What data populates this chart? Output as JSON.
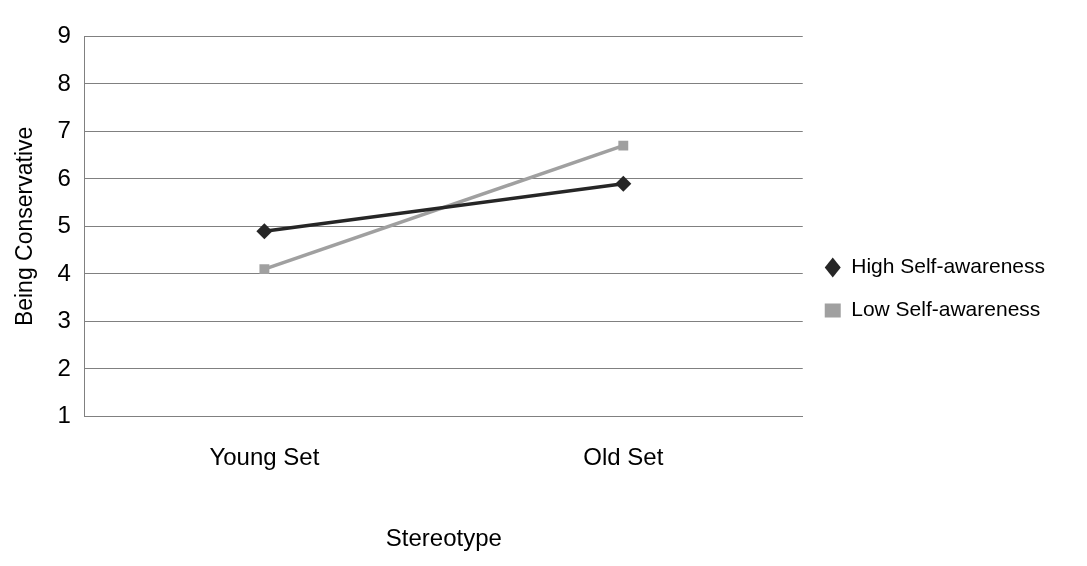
{
  "chart_data": {
    "type": "line",
    "xlabel": "Stereotype",
    "ylabel": "Being Conservative",
    "categories": [
      "Young Set",
      "Old Set"
    ],
    "series": [
      {
        "name": "High Self-awareness",
        "color": "#262626",
        "values": [
          4.9,
          5.9
        ],
        "marker": "diamond"
      },
      {
        "name": "Low Self-awareness",
        "color": "#a0a0a0",
        "values": [
          4.1,
          6.7
        ],
        "marker": "square"
      }
    ],
    "ylim": [
      1,
      9
    ],
    "yticks": [
      1,
      2,
      3,
      4,
      5,
      6,
      7,
      8,
      9
    ],
    "grid": "y",
    "legend": "right",
    "line_style": "solid"
  }
}
